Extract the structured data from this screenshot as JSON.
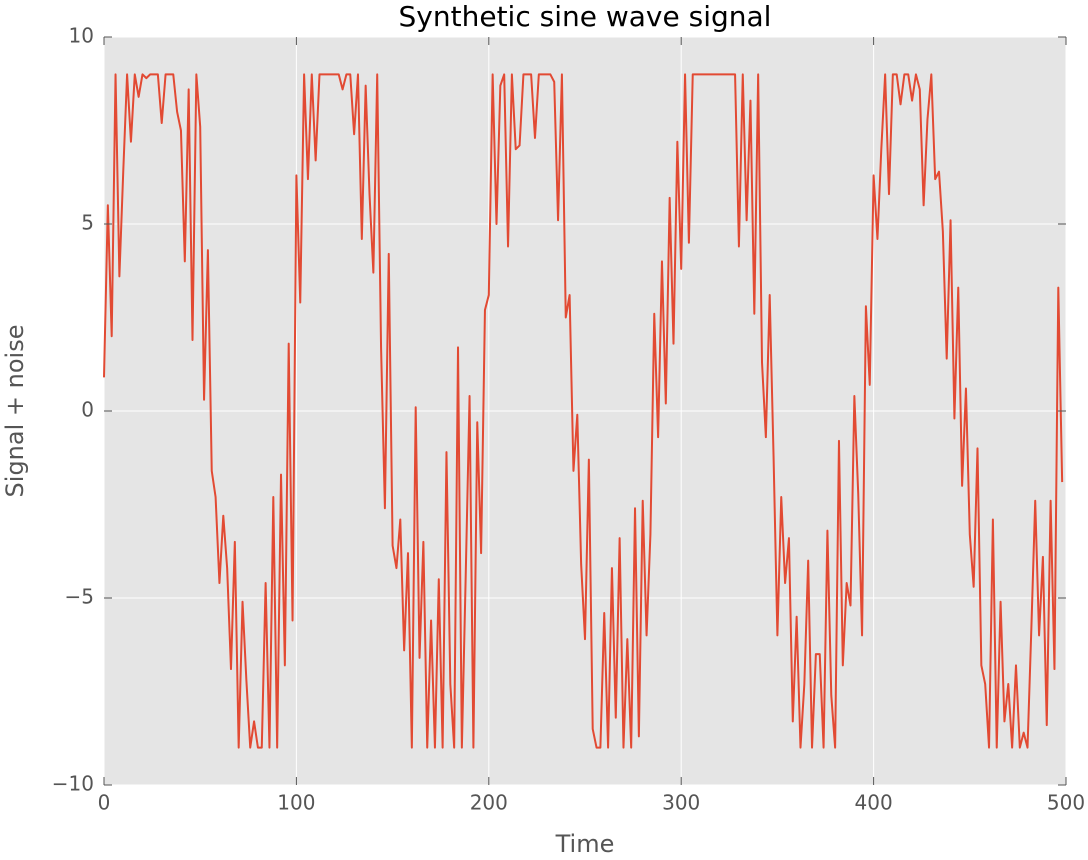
{
  "chart_data": {
    "type": "line",
    "title": "Synthetic sine wave signal",
    "x_label": "Time",
    "y_label": "Signal + noise",
    "color": "#e24a33",
    "grid": true,
    "xlim": [
      0,
      500
    ],
    "ylim": [
      -10,
      10
    ],
    "xticks": [
      0,
      100,
      200,
      300,
      400,
      500
    ],
    "yticks": [
      {
        "value": -10,
        "label": "−10"
      },
      {
        "value": -5,
        "label": "−5"
      },
      0,
      5,
      10
    ],
    "x": [
      0,
      2,
      4,
      6,
      8,
      10,
      12,
      14,
      16,
      18,
      20,
      22,
      24,
      26,
      28,
      30,
      32,
      34,
      36,
      38,
      40,
      42,
      44,
      46,
      48,
      50,
      52,
      54,
      56,
      58,
      60,
      62,
      64,
      66,
      68,
      70,
      72,
      74,
      76,
      78,
      80,
      82,
      84,
      86,
      88,
      90,
      92,
      94,
      96,
      98,
      100,
      102,
      104,
      106,
      108,
      110,
      112,
      114,
      116,
      118,
      120,
      122,
      124,
      126,
      128,
      130,
      132,
      134,
      136,
      138,
      140,
      142,
      144,
      146,
      148,
      150,
      152,
      154,
      156,
      158,
      160,
      162,
      164,
      166,
      168,
      170,
      172,
      174,
      176,
      178,
      180,
      182,
      184,
      186,
      188,
      190,
      192,
      194,
      196,
      198,
      200,
      202,
      204,
      206,
      208,
      210,
      212,
      214,
      216,
      218,
      220,
      222,
      224,
      226,
      228,
      230,
      232,
      234,
      236,
      238,
      240,
      242,
      244,
      246,
      248,
      250,
      252,
      254,
      256,
      258,
      260,
      262,
      264,
      266,
      268,
      270,
      272,
      274,
      276,
      278,
      280,
      282,
      284,
      286,
      288,
      290,
      292,
      294,
      296,
      298,
      300,
      302,
      304,
      306,
      308,
      310,
      312,
      314,
      316,
      318,
      320,
      322,
      324,
      326,
      328,
      330,
      332,
      334,
      336,
      338,
      340,
      342,
      344,
      346,
      348,
      350,
      352,
      354,
      356,
      358,
      360,
      362,
      364,
      366,
      368,
      370,
      372,
      374,
      376,
      378,
      380,
      382,
      384,
      386,
      388,
      390,
      392,
      394,
      396,
      398,
      400,
      402,
      404,
      406,
      408,
      410,
      412,
      414,
      416,
      418,
      420,
      422,
      424,
      426,
      428,
      430,
      432,
      434,
      436,
      438,
      440,
      442,
      444,
      446,
      448,
      450,
      452,
      454,
      456,
      458,
      460,
      462,
      464,
      466,
      468,
      470,
      472,
      474,
      476,
      478,
      480,
      482,
      484,
      486,
      488,
      490,
      492,
      494,
      496,
      498
    ],
    "values": [
      0.9,
      5.5,
      2,
      9,
      3.6,
      6.4,
      9,
      7.2,
      9,
      8.4,
      9,
      8.9,
      9,
      9,
      9,
      7.7,
      9,
      9,
      9,
      8,
      7.5,
      4,
      8.6,
      1.9,
      9,
      7.6,
      0.3,
      4.3,
      -1.6,
      -2.3,
      -4.6,
      -2.8,
      -4.2,
      -6.9,
      -3.5,
      -9,
      -5.1,
      -7.2,
      -9,
      -8.3,
      -9,
      -9,
      -4.6,
      -9,
      -2.3,
      -9,
      -1.7,
      -6.8,
      1.8,
      -5.6,
      6.3,
      2.9,
      9,
      6.2,
      9,
      6.7,
      9,
      9,
      9,
      9,
      9,
      9,
      8.6,
      9,
      9,
      7.4,
      9,
      4.6,
      8.7,
      5.8,
      3.7,
      9,
      1.7,
      -2.6,
      4.2,
      -3.6,
      -4.2,
      -2.9,
      -6.4,
      -3.8,
      -9,
      0.1,
      -6.6,
      -3.5,
      -9,
      -5.6,
      -9,
      -4.5,
      -9,
      -1.1,
      -7.3,
      -9,
      1.7,
      -9,
      -4.4,
      0.4,
      -9,
      -0.3,
      -3.8,
      2.7,
      3.1,
      9,
      5,
      8.7,
      9,
      4.4,
      9,
      7,
      7.1,
      9,
      9,
      9,
      7.3,
      9,
      9,
      9,
      9,
      8.8,
      5.1,
      9,
      2.5,
      3.1,
      -1.6,
      -0.1,
      -4.1,
      -6.1,
      -1.3,
      -8.5,
      -9,
      -9,
      -5.4,
      -9,
      -4.2,
      -8.2,
      -3.4,
      -9,
      -6.1,
      -9,
      -2.6,
      -8.7,
      -2.4,
      -6,
      -3.3,
      2.6,
      -0.7,
      4,
      0.2,
      5.7,
      1.8,
      7.2,
      3.8,
      9,
      4.5,
      9,
      9,
      9,
      9,
      9,
      9,
      9,
      9,
      9,
      9,
      9,
      9,
      4.4,
      9,
      5.1,
      8.3,
      2.6,
      9,
      1.3,
      -0.7,
      3.1,
      -1.2,
      -6,
      -2.3,
      -4.6,
      -3.4,
      -8.3,
      -5.5,
      -9,
      -7.3,
      -4,
      -9,
      -6.5,
      -6.5,
      -9,
      -3.2,
      -7.6,
      -9,
      -0.8,
      -6.8,
      -4.6,
      -5.2,
      0.4,
      -2.2,
      -6,
      2.8,
      0.7,
      6.3,
      4.6,
      7,
      9,
      5.8,
      9,
      9,
      8.2,
      9,
      9,
      8.3,
      9,
      8.6,
      5.5,
      7.8,
      9,
      6.2,
      6.4,
      4.8,
      1.4,
      5.1,
      -0.2,
      3.3,
      -2,
      0.6,
      -3.3,
      -4.7,
      -1,
      -6.8,
      -7.3,
      -9,
      -2.9,
      -9,
      -5.1,
      -8.3,
      -7.3,
      -9,
      -6.8,
      -9,
      -8.6,
      -9,
      -5.8,
      -2.4,
      -6,
      -3.9,
      -8.4,
      -2.4,
      -6.9,
      3.3,
      -1.9
    ]
  }
}
